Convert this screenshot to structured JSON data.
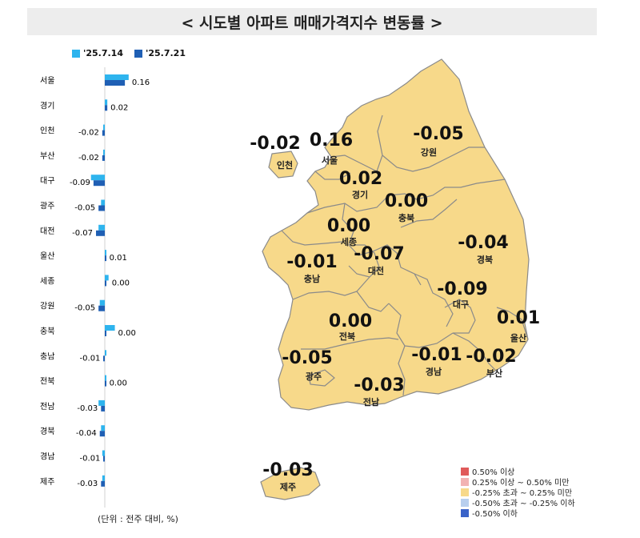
{
  "title": "< 시도별 아파트 매매가격지수 변동률 >",
  "unit_note": "(단위 : 전주 대비, %)",
  "colors": {
    "prev_week": "#2eb4ee",
    "this_week": "#1f5fb4",
    "map_fill": "#f7d98a",
    "map_stroke": "#8a8a8a"
  },
  "chart_data": {
    "type": "bar",
    "orientation": "horizontal",
    "series": [
      {
        "name": "'25.7.14",
        "values": [
          0.19,
          0.02,
          -0.01,
          -0.01,
          -0.11,
          -0.03,
          -0.05,
          0.01,
          0.03,
          -0.04,
          0.08,
          0.0,
          0.01,
          -0.05,
          -0.03,
          -0.02,
          -0.02
        ]
      },
      {
        "name": "'25.7.21",
        "values": [
          0.16,
          0.02,
          -0.02,
          -0.02,
          -0.09,
          -0.05,
          -0.07,
          0.01,
          0.0,
          -0.05,
          0.0,
          -0.01,
          0.0,
          -0.03,
          -0.04,
          -0.01,
          -0.03
        ]
      }
    ],
    "categories": [
      "서울",
      "경기",
      "인천",
      "부산",
      "대구",
      "광주",
      "대전",
      "울산",
      "세종",
      "강원",
      "충북",
      "충남",
      "전북",
      "전남",
      "경북",
      "경남",
      "제주"
    ],
    "value_labels": [
      "0.16",
      "0.02",
      "-0.02",
      "-0.02",
      "-0.09",
      "-0.05",
      "-0.07",
      "0.01",
      "0.00",
      "-0.05",
      "0.00",
      "-0.01",
      "0.00",
      "-0.03",
      "-0.04",
      "-0.01",
      "-0.03"
    ]
  },
  "map_labels": [
    {
      "region": "인천",
      "value": "-0.02"
    },
    {
      "region": "서울",
      "value": "0.16"
    },
    {
      "region": "강원",
      "value": "-0.05"
    },
    {
      "region": "경기",
      "value": "0.02"
    },
    {
      "region": "충북",
      "value": "0.00"
    },
    {
      "region": "세종",
      "value": "0.00"
    },
    {
      "region": "경북",
      "value": "-0.04"
    },
    {
      "region": "충남",
      "value": "-0.01"
    },
    {
      "region": "대전",
      "value": "-0.07"
    },
    {
      "region": "대구",
      "value": "-0.09"
    },
    {
      "region": "전북",
      "value": "0.00"
    },
    {
      "region": "울산",
      "value": "0.01"
    },
    {
      "region": "광주",
      "value": "-0.05"
    },
    {
      "region": "경남",
      "value": "-0.01"
    },
    {
      "region": "부산",
      "value": "-0.02"
    },
    {
      "region": "전남",
      "value": "-0.03"
    },
    {
      "region": "제주",
      "value": "-0.03"
    }
  ],
  "map_legend": [
    {
      "label": "0.50% 이상",
      "color": "#e05a5a"
    },
    {
      "label": "0.25% 이상 ~ 0.50% 미만",
      "color": "#f2b3b3"
    },
    {
      "label": "-0.25% 초과 ~ 0.25% 미만",
      "color": "#f7d98a"
    },
    {
      "label": "-0.50% 초과 ~ -0.25% 이하",
      "color": "#b8cfee"
    },
    {
      "label": "-0.50% 이하",
      "color": "#3a63c8"
    }
  ]
}
